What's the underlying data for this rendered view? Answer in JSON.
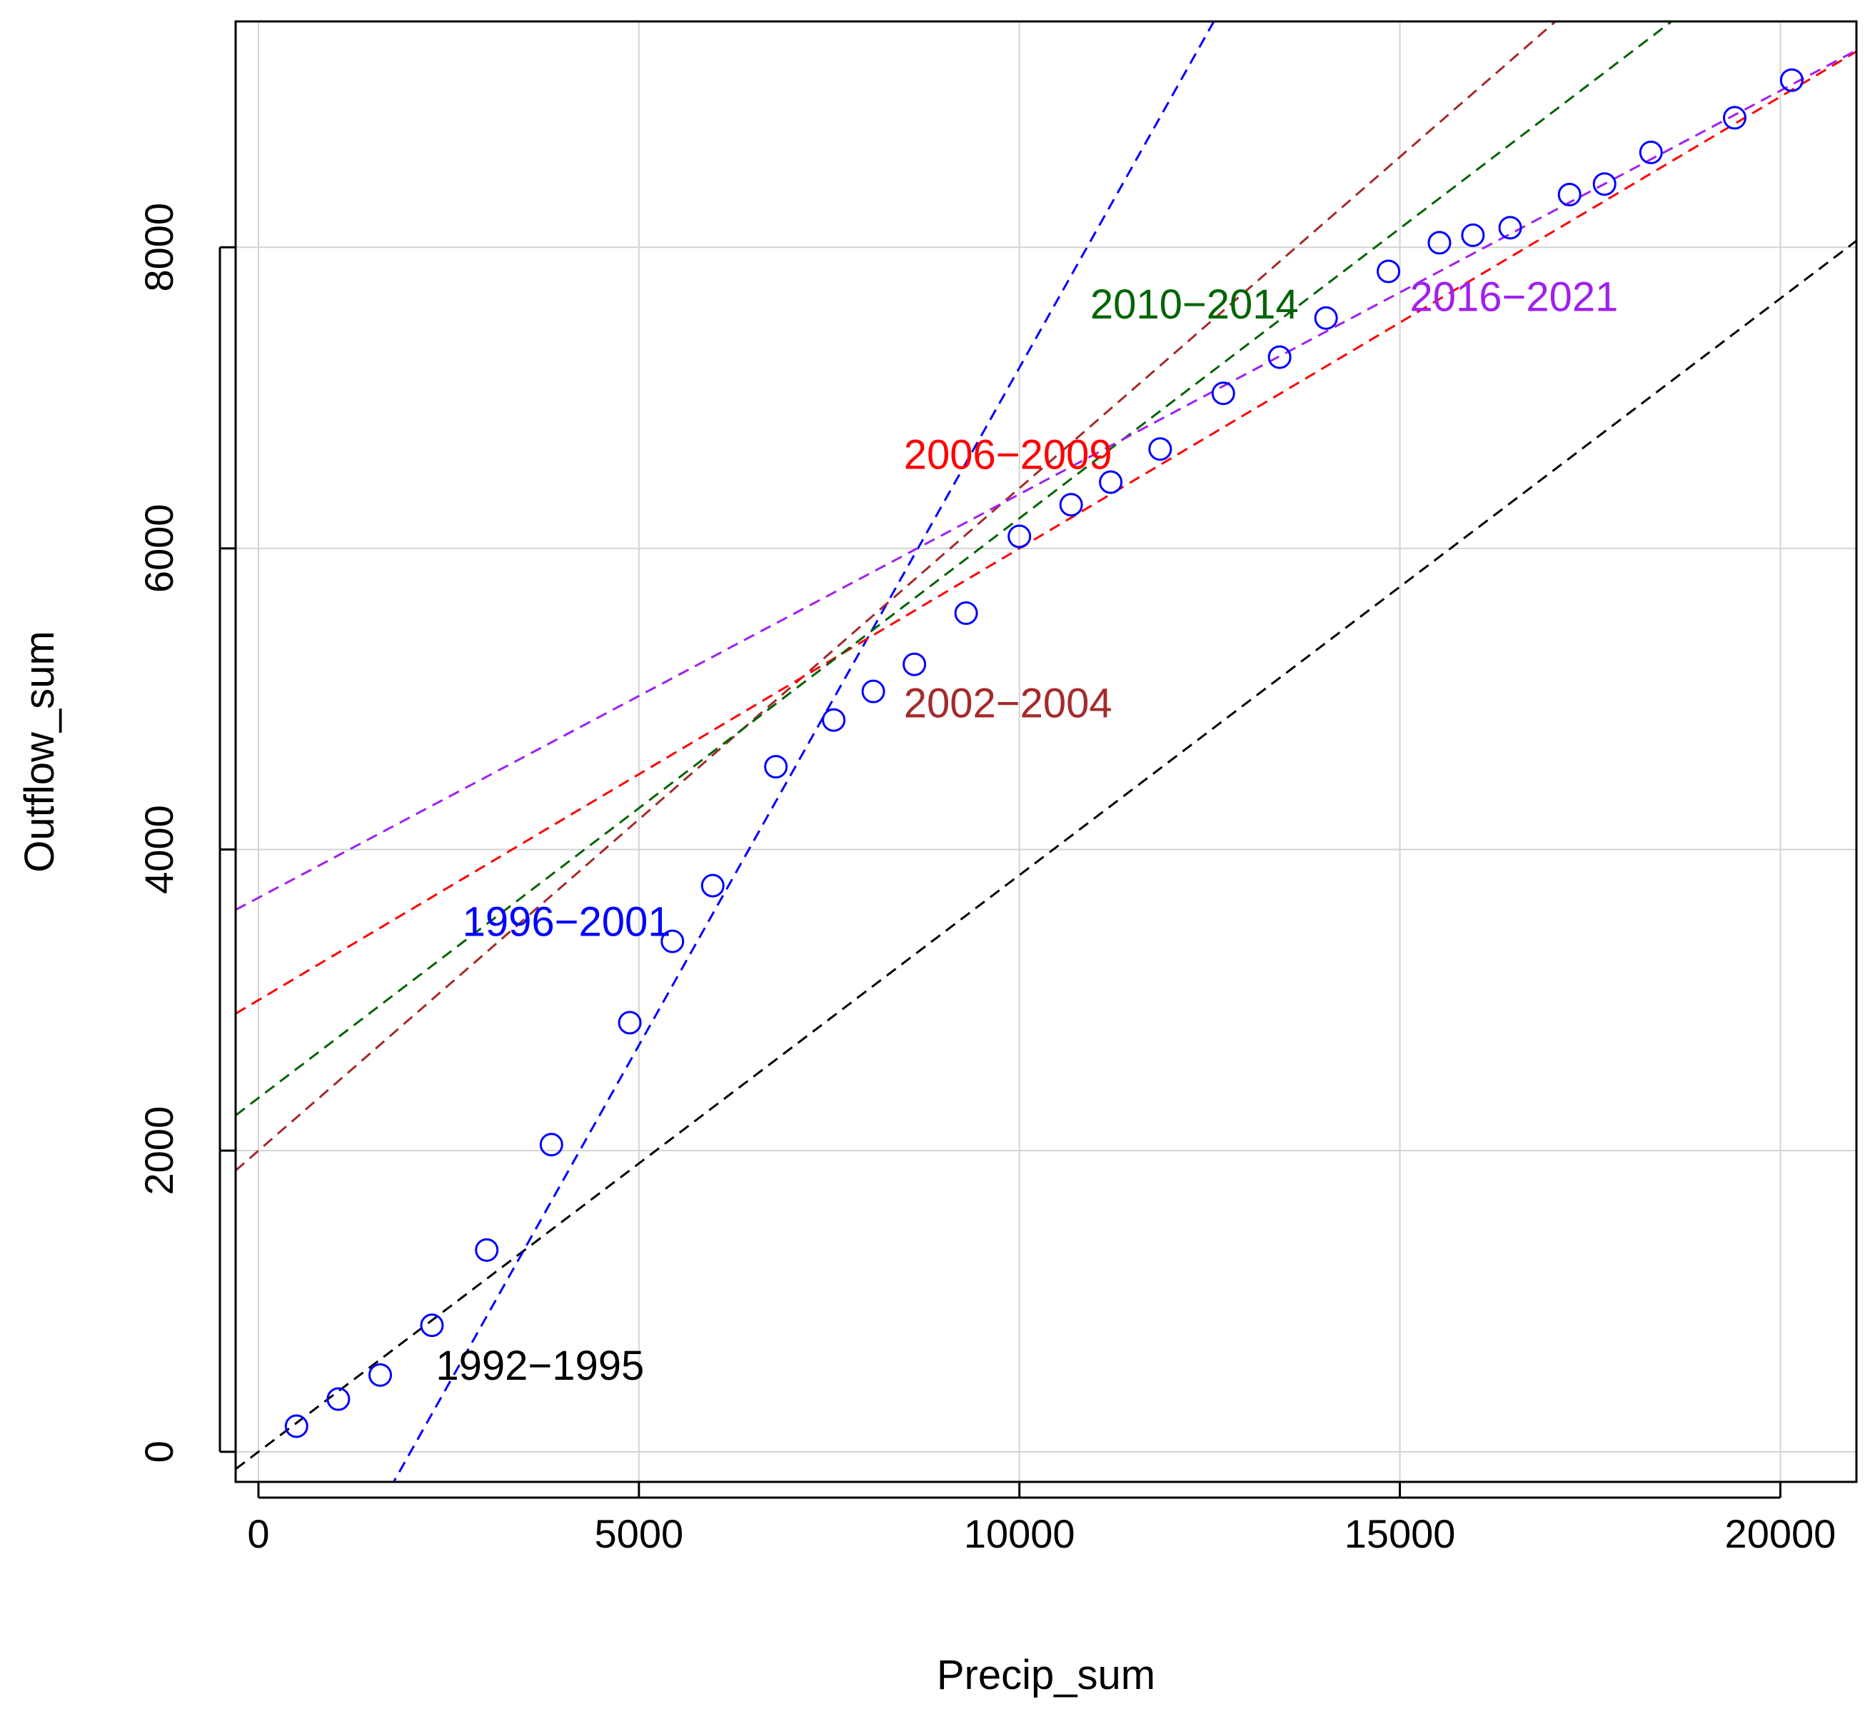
{
  "chart_data": {
    "type": "scatter",
    "xlabel": "Precip_sum",
    "ylabel": "Outflow_sum",
    "xlim": [
      -300,
      21000
    ],
    "ylim": [
      -200,
      9500
    ],
    "xticks": [
      0,
      5000,
      10000,
      15000,
      20000
    ],
    "yticks": [
      0,
      2000,
      4000,
      6000,
      8000
    ],
    "grid": true,
    "points": {
      "color": "#0000ff",
      "x": [
        500,
        1050,
        1600,
        2280,
        3000,
        3850,
        4880,
        5440,
        5970,
        6800,
        7560,
        8080,
        8620,
        9300,
        10000,
        10680,
        11200,
        11850,
        12680,
        13420,
        14030,
        14850,
        15520,
        15960,
        16450,
        17230,
        17690,
        18300,
        19400,
        20150
      ],
      "y": [
        170,
        350,
        510,
        840,
        1340,
        2040,
        2850,
        3390,
        3760,
        4550,
        4860,
        5050,
        5230,
        5570,
        6080,
        6290,
        6440,
        6660,
        7030,
        7270,
        7530,
        7840,
        8030,
        8080,
        8130,
        8350,
        8420,
        8630,
        8860,
        9110
      ]
    },
    "fit_lines": [
      {
        "label": "1992−1995",
        "color": "#000000",
        "intercept": 0,
        "slope": 0.383,
        "label_x": 3700,
        "label_y": 550
      },
      {
        "label": "1996−2001",
        "color": "#0000ff",
        "intercept": -1800,
        "slope": 0.9,
        "label_x": 4050,
        "label_y": 3500
      },
      {
        "label": "2002−2004",
        "color": "#a52a2a",
        "intercept": 2000,
        "slope": 0.44,
        "label_x": 9850,
        "label_y": 4950
      },
      {
        "label": "2006−2009",
        "color": "#ff0000",
        "intercept": 3000,
        "slope": 0.3,
        "label_x": 9850,
        "label_y": 6600
      },
      {
        "label": "2010−2014",
        "color": "#006400",
        "intercept": 2350,
        "slope": 0.385,
        "label_x": 12300,
        "label_y": 7600
      },
      {
        "label": "2016−2021",
        "color": "#a020f0",
        "intercept": 3680,
        "slope": 0.268,
        "label_x": 16500,
        "label_y": 7650
      }
    ]
  }
}
